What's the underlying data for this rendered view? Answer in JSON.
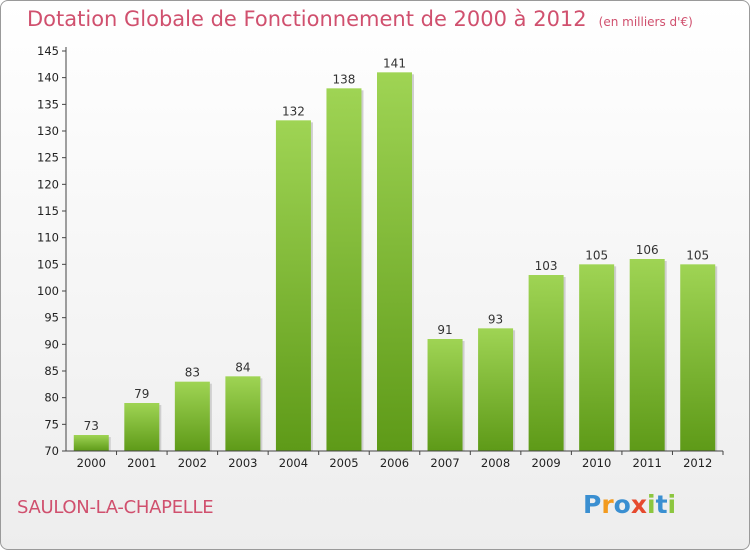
{
  "title": "Dotation Globale de Fonctionnement de 2000 à 2012",
  "unit_note": "(en milliers d'€)",
  "commune": "SAULON-LA-CHAPELLE",
  "logo": {
    "text": "Proxiti",
    "letter_colors": [
      "#3a8fd1",
      "#f29a1e",
      "#3a8fd1",
      "#e64a2e",
      "#8cc63f",
      "#3a8fd1",
      "#8cc63f"
    ]
  },
  "colors": {
    "title": "#d0506e",
    "bar_light": "#9fd454",
    "bar_dark": "#5e9a18",
    "axis": "#444444"
  },
  "chart_data": {
    "type": "bar",
    "title": "Dotation Globale de Fonctionnement de 2000 à 2012",
    "categories": [
      "2000",
      "2001",
      "2002",
      "2003",
      "2004",
      "2005",
      "2006",
      "2007",
      "2008",
      "2009",
      "2010",
      "2011",
      "2012"
    ],
    "values": [
      73,
      79,
      83,
      84,
      132,
      138,
      141,
      91,
      93,
      103,
      105,
      106,
      105
    ],
    "ylim": [
      70,
      145
    ],
    "yticks": [
      70,
      75,
      80,
      85,
      90,
      95,
      100,
      105,
      110,
      115,
      120,
      125,
      130,
      135,
      140,
      145
    ],
    "grid": false,
    "data_labels": true
  }
}
